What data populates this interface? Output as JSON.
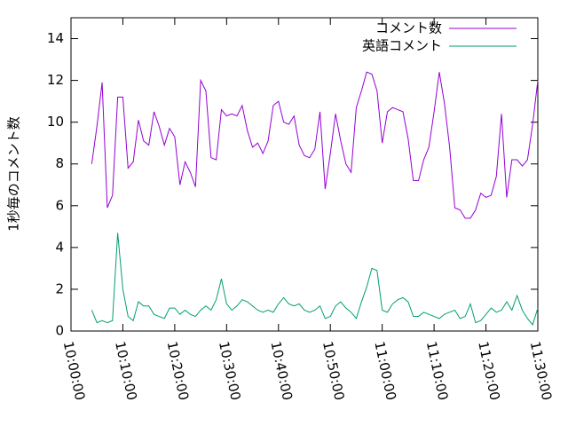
{
  "chart_data": {
    "type": "line",
    "ylabel": "1秒毎のコメント数",
    "x": [
      "10:04:00",
      "10:05:00",
      "10:06:00",
      "10:07:00",
      "10:08:00",
      "10:09:00",
      "10:10:00",
      "10:11:00",
      "10:12:00",
      "10:13:00",
      "10:14:00",
      "10:15:00",
      "10:16:00",
      "10:17:00",
      "10:18:00",
      "10:19:00",
      "10:20:00",
      "10:21:00",
      "10:22:00",
      "10:23:00",
      "10:24:00",
      "10:25:00",
      "10:26:00",
      "10:27:00",
      "10:28:00",
      "10:29:00",
      "10:30:00",
      "10:31:00",
      "10:32:00",
      "10:33:00",
      "10:34:00",
      "10:35:00",
      "10:36:00",
      "10:37:00",
      "10:38:00",
      "10:39:00",
      "10:40:00",
      "10:41:00",
      "10:42:00",
      "10:43:00",
      "10:44:00",
      "10:45:00",
      "10:46:00",
      "10:47:00",
      "10:48:00",
      "10:49:00",
      "10:50:00",
      "10:51:00",
      "10:52:00",
      "10:53:00",
      "10:54:00",
      "10:55:00",
      "10:56:00",
      "10:57:00",
      "10:58:00",
      "10:59:00",
      "11:00:00",
      "11:01:00",
      "11:02:00",
      "11:03:00",
      "11:04:00",
      "11:05:00",
      "11:06:00",
      "11:07:00",
      "11:08:00",
      "11:09:00",
      "11:10:00",
      "11:11:00",
      "11:12:00",
      "11:13:00",
      "11:14:00",
      "11:15:00",
      "11:16:00",
      "11:17:00",
      "11:18:00",
      "11:19:00",
      "11:20:00",
      "11:21:00",
      "11:22:00",
      "11:23:00",
      "11:24:00",
      "11:25:00",
      "11:26:00",
      "11:27:00",
      "11:28:00",
      "11:29:00",
      "11:30:00"
    ],
    "series": [
      {
        "name": "コメント数",
        "color": "#9400d3",
        "values": [
          8.0,
          9.8,
          11.9,
          5.9,
          6.5,
          11.2,
          11.2,
          7.8,
          8.1,
          10.1,
          9.1,
          8.9,
          10.5,
          9.8,
          8.9,
          9.7,
          9.3,
          7.0,
          8.1,
          7.6,
          6.9,
          12.0,
          11.5,
          8.3,
          8.2,
          10.6,
          10.3,
          10.4,
          10.3,
          10.8,
          9.6,
          8.8,
          9.0,
          8.5,
          9.1,
          10.8,
          11.0,
          10.0,
          9.9,
          10.3,
          8.9,
          8.4,
          8.3,
          8.7,
          10.5,
          6.8,
          8.5,
          10.4,
          9.1,
          8.0,
          7.6,
          10.7,
          11.5,
          12.4,
          12.3,
          11.5,
          9.0,
          10.5,
          10.7,
          10.6,
          10.5,
          9.2,
          7.2,
          7.2,
          8.2,
          8.8,
          10.5,
          12.4,
          10.9,
          8.8,
          5.9,
          5.8,
          5.4,
          5.4,
          5.8,
          6.6,
          6.4,
          6.5,
          7.4,
          10.4,
          6.4,
          8.2,
          8.2,
          7.9,
          8.2,
          9.9,
          12.0
        ]
      },
      {
        "name": "英語コメント",
        "color": "#009e73",
        "values": [
          1.0,
          0.4,
          0.5,
          0.4,
          0.5,
          4.7,
          2.0,
          0.7,
          0.5,
          1.4,
          1.2,
          1.2,
          0.8,
          0.7,
          0.6,
          1.1,
          1.1,
          0.8,
          1.0,
          0.8,
          0.7,
          1.0,
          1.2,
          1.0,
          1.5,
          2.5,
          1.3,
          1.0,
          1.2,
          1.5,
          1.4,
          1.2,
          1.0,
          0.9,
          1.0,
          0.9,
          1.3,
          1.6,
          1.3,
          1.2,
          1.3,
          1.0,
          0.9,
          1.0,
          1.2,
          0.6,
          0.7,
          1.2,
          1.4,
          1.1,
          0.9,
          0.6,
          1.4,
          2.1,
          3.0,
          2.9,
          1.0,
          0.9,
          1.3,
          1.5,
          1.6,
          1.4,
          0.7,
          0.7,
          0.9,
          0.8,
          0.7,
          0.6,
          0.8,
          0.9,
          1.0,
          0.6,
          0.7,
          1.3,
          0.4,
          0.5,
          0.8,
          1.1,
          0.9,
          1.0,
          1.4,
          1.0,
          1.7,
          1.0,
          0.6,
          0.3,
          1.1
        ]
      }
    ],
    "xlim": [
      "10:00:00",
      "11:30:00"
    ],
    "xticks": [
      "10:00:00",
      "10:10:00",
      "10:20:00",
      "10:30:00",
      "10:40:00",
      "10:50:00",
      "11:00:00",
      "11:10:00",
      "11:20:00",
      "11:30:00"
    ],
    "ylim": [
      0,
      15
    ],
    "yticks": [
      0,
      2,
      4,
      6,
      8,
      10,
      12,
      14
    ],
    "legend": "top-right"
  }
}
